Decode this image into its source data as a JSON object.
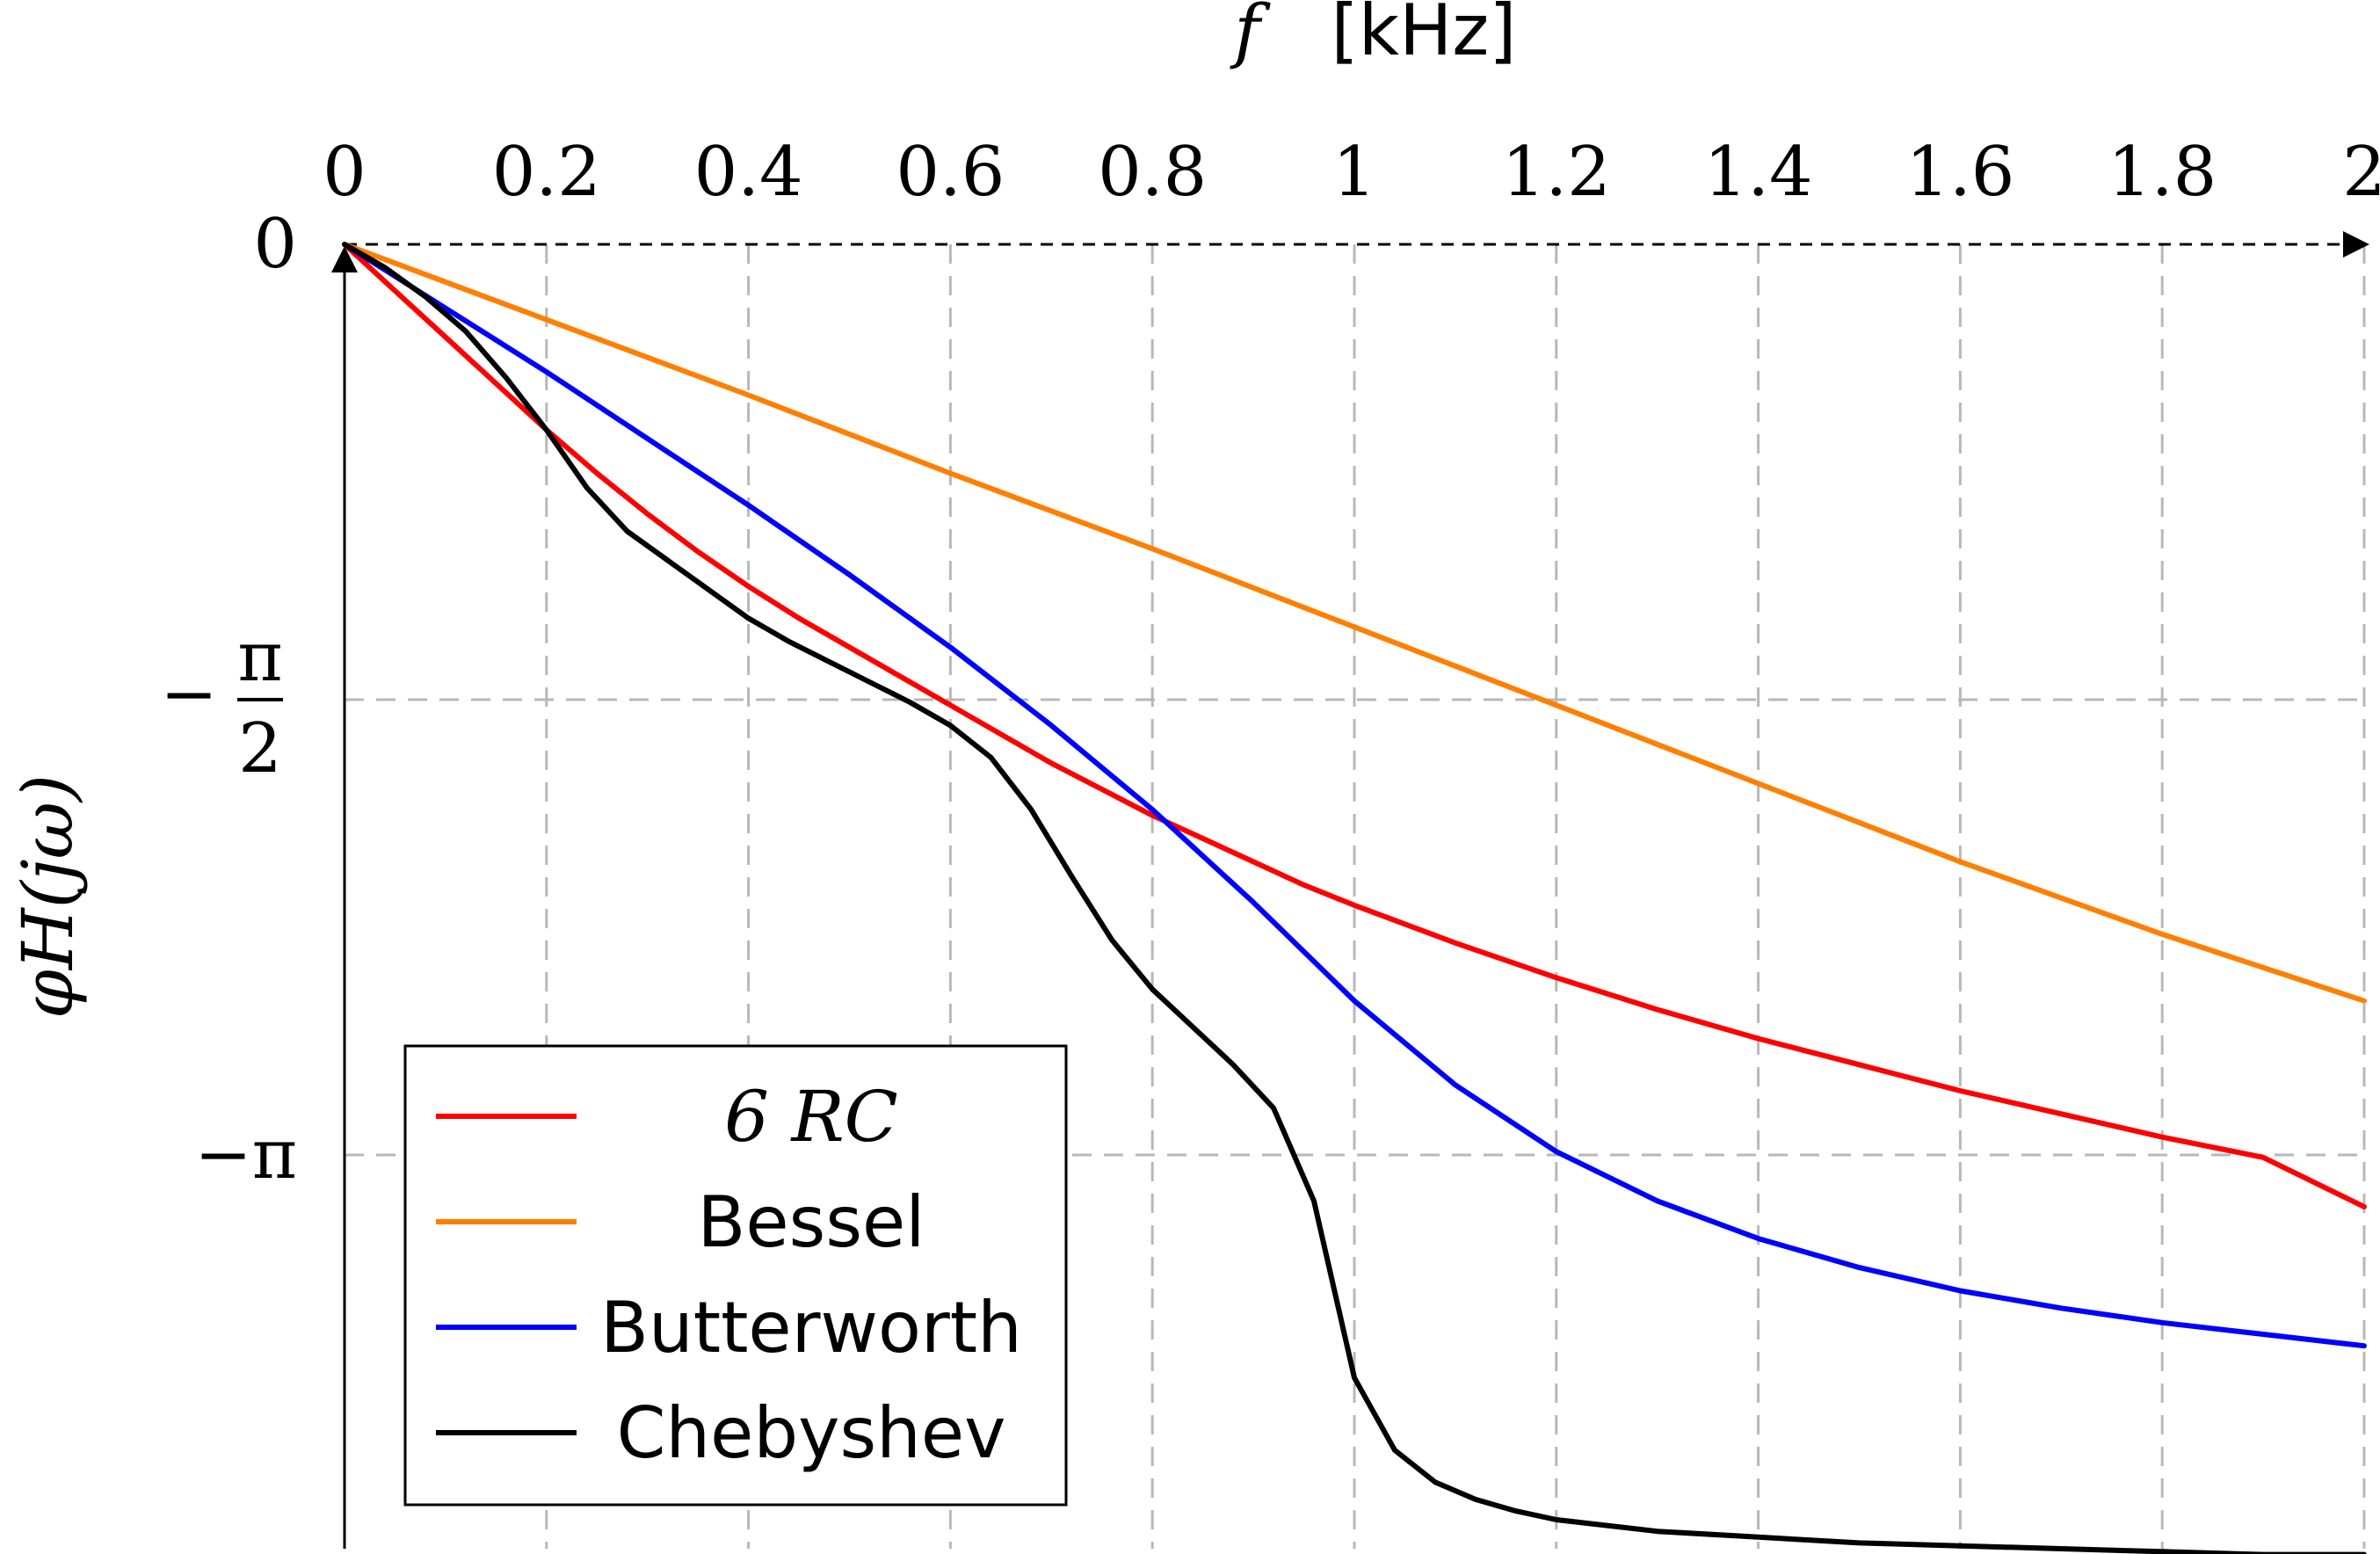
{
  "chart_data": {
    "type": "line",
    "title": "",
    "xlabel": {
      "symbol": "f",
      "unit": "[kHz]"
    },
    "ylabel": "φH(jω)",
    "x_axis_position": "top",
    "xlim": [
      0,
      2
    ],
    "ylim": [
      -4.5,
      0
    ],
    "grid": true,
    "legend_position": "bottom-left",
    "x_ticks": [
      {
        "value": 0,
        "label": "0"
      },
      {
        "value": 0.2,
        "label": "0.2"
      },
      {
        "value": 0.4,
        "label": "0.4"
      },
      {
        "value": 0.6,
        "label": "0.6"
      },
      {
        "value": 0.8,
        "label": "0.8"
      },
      {
        "value": 1.0,
        "label": "1"
      },
      {
        "value": 1.2,
        "label": "1.2"
      },
      {
        "value": 1.4,
        "label": "1.4"
      },
      {
        "value": 1.6,
        "label": "1.6"
      },
      {
        "value": 1.8,
        "label": "1.8"
      },
      {
        "value": 2.0,
        "label": "2"
      }
    ],
    "y_ticks": [
      {
        "value": 0,
        "label": "0"
      },
      {
        "value": -1.5708,
        "label": "−π/2",
        "numerator": "π",
        "denominator": "2",
        "sign": "−"
      },
      {
        "value": -3.1416,
        "label": "−π"
      }
    ],
    "series": [
      {
        "name": "6 RC",
        "color": "#ff0000",
        "x": [
          0,
          0.05,
          0.1,
          0.15,
          0.2,
          0.25,
          0.3,
          0.35,
          0.4,
          0.45,
          0.5,
          0.55,
          0.6,
          0.65,
          0.7,
          0.75,
          0.8,
          0.85,
          0.9,
          0.95,
          1.0,
          1.1,
          1.2,
          1.3,
          1.4,
          1.5,
          1.6,
          1.7,
          1.8,
          1.9,
          2.0
        ],
        "y": [
          0,
          -0.16,
          -0.32,
          -0.48,
          -0.64,
          -0.79,
          -0.93,
          -1.06,
          -1.18,
          -1.29,
          -1.39,
          -1.49,
          -1.59,
          -1.69,
          -1.79,
          -1.88,
          -1.97,
          -2.05,
          -2.13,
          -2.21,
          -2.28,
          -2.41,
          -2.53,
          -2.64,
          -2.74,
          -2.83,
          -2.92,
          -3.0,
          -3.08,
          -3.15,
          -3.32
        ]
      },
      {
        "name": "Bessel",
        "color": "#ff7f00",
        "x": [
          0,
          0.2,
          0.4,
          0.6,
          0.8,
          1.0,
          1.2,
          1.4,
          1.6,
          1.8,
          2.0
        ],
        "y": [
          0,
          -0.26,
          -0.52,
          -0.79,
          -1.05,
          -1.32,
          -1.59,
          -1.86,
          -2.13,
          -2.38,
          -2.61
        ]
      },
      {
        "name": "Butterworth",
        "color": "#0000ff",
        "x": [
          0,
          0.1,
          0.2,
          0.3,
          0.4,
          0.5,
          0.6,
          0.7,
          0.8,
          0.9,
          1.0,
          1.1,
          1.2,
          1.3,
          1.4,
          1.5,
          1.6,
          1.7,
          1.8,
          1.9,
          2.0
        ],
        "y": [
          0,
          -0.22,
          -0.44,
          -0.67,
          -0.9,
          -1.14,
          -1.39,
          -1.66,
          -1.95,
          -2.27,
          -2.61,
          -2.9,
          -3.13,
          -3.3,
          -3.43,
          -3.53,
          -3.61,
          -3.67,
          -3.72,
          -3.76,
          -3.8
        ]
      },
      {
        "name": "Chebyshev",
        "color": "#000000",
        "x": [
          0,
          0.04,
          0.08,
          0.12,
          0.16,
          0.2,
          0.24,
          0.28,
          0.32,
          0.36,
          0.4,
          0.44,
          0.48,
          0.52,
          0.56,
          0.6,
          0.64,
          0.68,
          0.72,
          0.76,
          0.8,
          0.84,
          0.88,
          0.92,
          0.96,
          1.0,
          1.04,
          1.08,
          1.12,
          1.16,
          1.2,
          1.3,
          1.4,
          1.5,
          1.6,
          1.7,
          1.8,
          1.9,
          2.0
        ],
        "y": [
          0,
          -0.08,
          -0.18,
          -0.3,
          -0.46,
          -0.64,
          -0.84,
          -0.99,
          -1.09,
          -1.19,
          -1.29,
          -1.37,
          -1.44,
          -1.51,
          -1.58,
          -1.66,
          -1.77,
          -1.95,
          -2.18,
          -2.4,
          -2.57,
          -2.7,
          -2.83,
          -2.98,
          -3.3,
          -3.91,
          -4.16,
          -4.27,
          -4.33,
          -4.37,
          -4.4,
          -4.44,
          -4.46,
          -4.48,
          -4.49,
          -4.5,
          -4.51,
          -4.52,
          -4.52
        ]
      }
    ]
  }
}
